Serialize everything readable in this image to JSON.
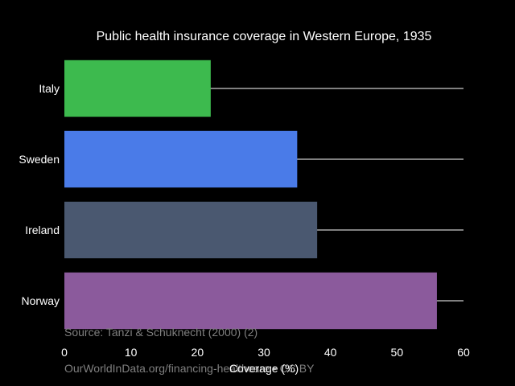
{
  "chart_data": {
    "type": "bar",
    "orientation": "horizontal",
    "title": "Public health insurance coverage in Western Europe, 1935",
    "xlabel": "Coverage (%)",
    "ylabel": "",
    "categories": [
      "Italy",
      "Sweden",
      "Ireland",
      "Norway"
    ],
    "values": [
      22,
      35,
      38,
      56
    ],
    "colors": [
      "#3dba4e",
      "#4a7be8",
      "#4a5870",
      "#8b5a9c"
    ],
    "xlim": [
      0,
      60
    ],
    "xticks": [
      0,
      10,
      20,
      30,
      40,
      50,
      60
    ],
    "grid": true,
    "legend": "none"
  },
  "notes": {
    "source": "Source: Tanzi & Schuknecht (2000) (2)",
    "url": "OurWorldInData.org/financing-healthcare • CC BY"
  }
}
